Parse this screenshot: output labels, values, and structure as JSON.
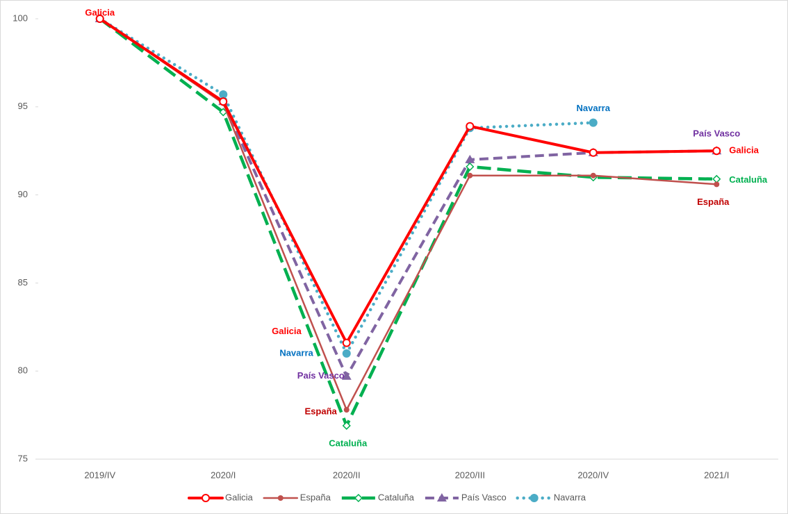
{
  "chart_data": {
    "type": "line",
    "categories": [
      "2019/IV",
      "2020/I",
      "2020/II",
      "2020/III",
      "2020/IV",
      "2021/I"
    ],
    "ylim": [
      75,
      100
    ],
    "yticks": [
      75,
      80,
      85,
      90,
      95,
      100
    ],
    "grid": false,
    "legend": "bottom",
    "series": [
      {
        "name": "Galicia",
        "color": "#ff0000",
        "label_color": "#ff0000",
        "values": [
          100,
          95.3,
          81.6,
          93.9,
          92.4,
          92.5
        ],
        "point_labels": [
          "Galicia",
          null,
          "Galicia",
          null,
          null,
          "Galicia"
        ]
      },
      {
        "name": "España",
        "color": "#c0504d",
        "label_color": "#c00000",
        "values": [
          100,
          95.2,
          77.8,
          91.1,
          91.1,
          90.6
        ],
        "point_labels": [
          null,
          null,
          "España",
          null,
          null,
          "España"
        ]
      },
      {
        "name": "Cataluña",
        "color": "#00b050",
        "label_color": "#00b050",
        "values": [
          100,
          94.7,
          76.9,
          91.6,
          91.0,
          90.9
        ],
        "point_labels": [
          null,
          null,
          "Cataluña",
          null,
          null,
          "Cataluña"
        ]
      },
      {
        "name": "País Vasco",
        "color": "#8064a2",
        "label_color": "#7030a0",
        "values": [
          100,
          95.3,
          79.7,
          92.0,
          92.4,
          92.5
        ],
        "point_labels": [
          null,
          null,
          "País Vasco",
          null,
          null,
          "País Vasco"
        ]
      },
      {
        "name": "Navarra",
        "color": "#4bacc6",
        "label_color": "#0070c0",
        "values": [
          100,
          95.7,
          81.0,
          93.8,
          94.1,
          null
        ],
        "point_labels": [
          null,
          null,
          "Navarra",
          null,
          "Navarra",
          null
        ]
      }
    ]
  }
}
